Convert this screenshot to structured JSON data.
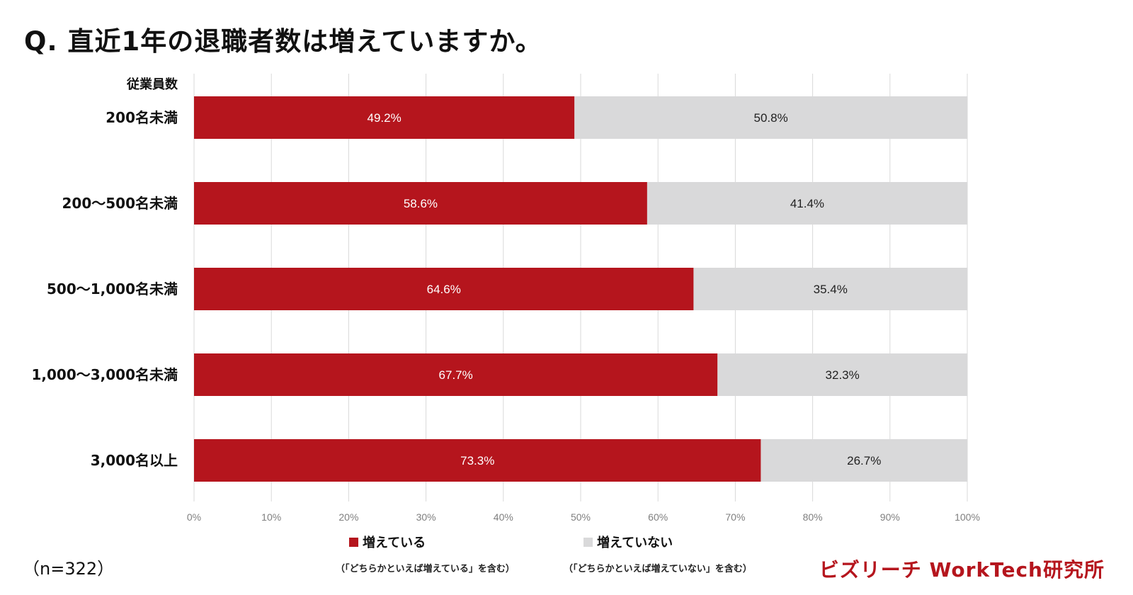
{
  "title": {
    "prefix": "Q.",
    "text": "直近1年の退職者数は増えていますか。"
  },
  "colors": {
    "increased": "#b5151d",
    "not_increased": "#d9d9da",
    "grid": "#d9d9d9",
    "brand": "#b5151d"
  },
  "chart_data": {
    "type": "bar",
    "orientation": "horizontal",
    "stacked": true,
    "title": "直近1年の退職者数は増えていますか。",
    "category_axis_label": "従業員数",
    "categories": [
      "200名未満",
      "200〜500名未満",
      "500〜1,000名未満",
      "1,000〜3,000名未満",
      "3,000名以上"
    ],
    "series": [
      {
        "name": "増えている",
        "note": "（「どちらかといえば増えている」を含む）",
        "values": [
          49.2,
          58.6,
          64.6,
          67.7,
          73.3
        ]
      },
      {
        "name": "増えていない",
        "note": "（「どちらかといえば増えていない」を含む）",
        "values": [
          50.8,
          41.4,
          35.4,
          32.3,
          26.7
        ]
      }
    ],
    "value_labels": [
      [
        "49.2%",
        "58.6%",
        "64.6%",
        "67.7%",
        "73.3%"
      ],
      [
        "50.8%",
        "41.4%",
        "35.4%",
        "32.3%",
        "26.7%"
      ]
    ],
    "x_ticks": [
      "0%",
      "10%",
      "20%",
      "30%",
      "40%",
      "50%",
      "60%",
      "70%",
      "80%",
      "90%",
      "100%"
    ],
    "xlim": [
      0,
      100
    ],
    "grid": true,
    "legend_position": "bottom"
  },
  "sample_size": "（n=322）",
  "brand": "ビズリーチ WorkTech研究所"
}
